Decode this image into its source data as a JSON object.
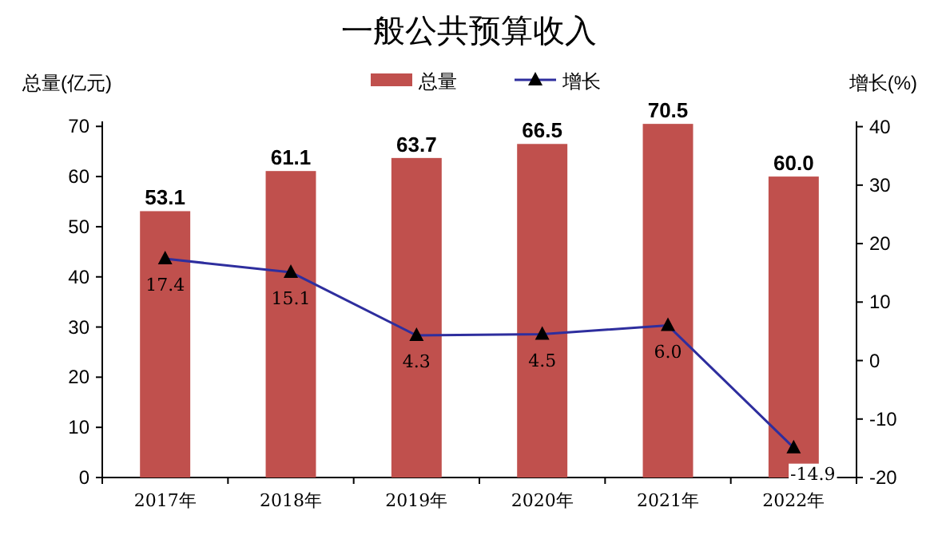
{
  "chart_data": {
    "type": "bar",
    "title": "一般公共预算收入",
    "ylabel": "总量(亿元)",
    "y2label": "增长(%)",
    "categories": [
      "2017年",
      "2018年",
      "2019年",
      "2020年",
      "2021年",
      "2022年"
    ],
    "series": [
      {
        "name": "总量",
        "color": "#c0504d",
        "values": [
          53.1,
          61.1,
          63.7,
          66.5,
          70.5,
          60.0
        ],
        "value_labels": [
          "53.1",
          "61.1",
          "63.7",
          "66.5",
          "70.5",
          "60.0"
        ]
      },
      {
        "name": "增长",
        "type": "line",
        "axis": "y2",
        "color": "#2e2e9e",
        "marker": "triangle",
        "values": [
          17.4,
          15.1,
          4.3,
          4.5,
          6.0,
          -14.9
        ],
        "value_labels": [
          "17.4",
          "15.1",
          "4.3",
          "4.5",
          "6.0",
          "-14.9"
        ]
      }
    ],
    "ylim": [
      0,
      71
    ],
    "yticks": [
      0,
      10,
      20,
      30,
      40,
      50,
      60,
      70
    ],
    "y2lim": [
      -20,
      40.9
    ],
    "y2ticks": [
      -20,
      -10,
      0,
      10,
      20,
      30,
      40
    ],
    "legend": "top"
  }
}
